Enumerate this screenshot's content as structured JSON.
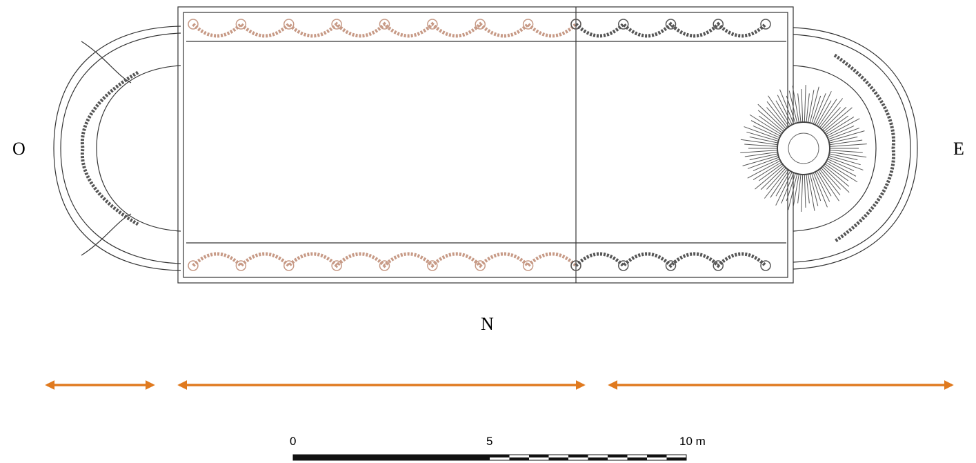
{
  "compass": {
    "west": "O",
    "east": "E",
    "north": "N"
  },
  "scale_bar": {
    "labels": [
      "0",
      "5",
      "10 m"
    ]
  }
}
